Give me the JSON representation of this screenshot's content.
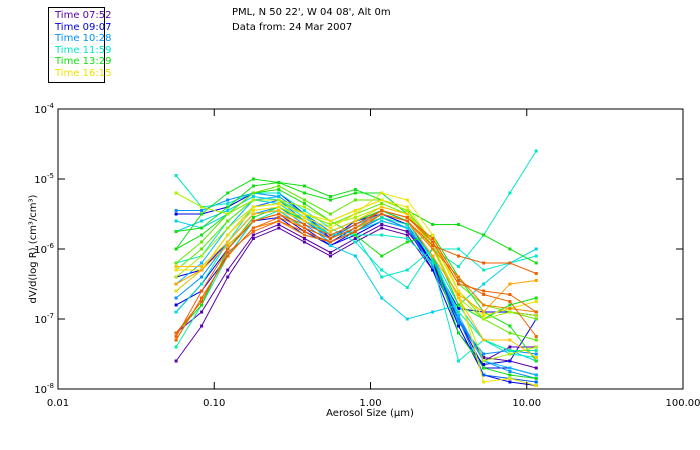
{
  "legend": {
    "items": [
      {
        "label": "Time 07:52",
        "color": "#5a00a8"
      },
      {
        "label": "Time 09:07",
        "color": "#0000e8"
      },
      {
        "label": "Time 10:28",
        "color": "#0090ff"
      },
      {
        "label": "Time 11:59",
        "color": "#00e8c8"
      },
      {
        "label": "Time 13:29",
        "color": "#10e010"
      },
      {
        "label": "Time 16:15",
        "color": "#f0e000"
      }
    ]
  },
  "header": {
    "line1": "PML, N 50 22', W 04 08', Alt 0m",
    "line2": "Data from: 24 Mar 2007"
  },
  "chart_data": {
    "type": "line",
    "title": "PML, N 50 22', W 04 08', Alt 0m",
    "subtitle": "Data from: 24 Mar 2007",
    "xlabel": "Aerosol Size (μm)",
    "ylabel": "dV/d(log R) (cm³/cm³)",
    "xscale": "log",
    "yscale": "log",
    "xlim": [
      0.01,
      100
    ],
    "ylim": [
      1e-08,
      0.0001
    ],
    "x_ticks": [
      "0.01",
      "0.10",
      "1.00",
      "10.00",
      "100.00"
    ],
    "y_ticks": [
      {
        "base": "10",
        "exp": "-4"
      },
      {
        "base": "10",
        "exp": "-5"
      },
      {
        "base": "10",
        "exp": "-6"
      },
      {
        "base": "10",
        "exp": "-7"
      },
      {
        "base": "10",
        "exp": "-8"
      }
    ],
    "legend_position": "top-left",
    "x": [
      0.057,
      0.083,
      0.122,
      0.178,
      0.259,
      0.378,
      0.554,
      0.8,
      1.18,
      1.72,
      2.5,
      3.66,
      5.3,
      7.8,
      11.5
    ],
    "series_note": "values are log10 of dV/d(log R)",
    "series": [
      {
        "color": "#5a00a8",
        "values": [
          -7.6,
          -7.1,
          -6.4,
          -5.85,
          -5.7,
          -5.9,
          -6.1,
          -5.9,
          -5.7,
          -5.8,
          -6.3,
          -7.0,
          -7.55,
          -7.6,
          -7.7
        ]
      },
      {
        "color": "#5a00a8",
        "values": [
          -7.2,
          -6.9,
          -6.3,
          -5.8,
          -5.65,
          -5.85,
          -6.05,
          -5.85,
          -5.65,
          -5.75,
          -6.2,
          -7.0,
          -7.6,
          -7.4,
          -7.4
        ]
      },
      {
        "color": "#0000e8",
        "values": [
          -6.4,
          -6.3,
          -5.9,
          -5.5,
          -5.45,
          -5.7,
          -5.95,
          -5.75,
          -5.55,
          -5.7,
          -6.2,
          -7.1,
          -7.8,
          -7.9,
          -7.95
        ]
      },
      {
        "color": "#0000e8",
        "values": [
          -5.5,
          -5.5,
          -5.4,
          -5.2,
          -5.2,
          -5.5,
          -5.85,
          -5.6,
          -5.5,
          -5.65,
          -6.2,
          -7.0,
          -7.7,
          -7.7,
          -7.8
        ]
      },
      {
        "color": "#0000e8",
        "values": [
          -6.9,
          -6.5,
          -6.0,
          -5.6,
          -5.5,
          -5.75,
          -5.95,
          -5.8,
          -5.6,
          -5.7,
          -6.3,
          -7.2,
          -7.65,
          -7.6,
          -7.0
        ]
      },
      {
        "color": "#0000e8",
        "values": [
          -6.8,
          -6.6,
          -6.1,
          -5.6,
          -5.55,
          -5.8,
          -5.9,
          -5.7,
          -5.5,
          -5.65,
          -6.2,
          -6.85,
          -6.9,
          -6.9,
          -6.95
        ]
      },
      {
        "color": "#0060f0",
        "values": [
          -6.6,
          -6.3,
          -5.8,
          -5.4,
          -5.3,
          -5.6,
          -5.85,
          -5.65,
          -5.45,
          -5.6,
          -6.15,
          -7.0,
          -7.8,
          -7.85,
          -7.9
        ]
      },
      {
        "color": "#0090ff",
        "values": [
          -5.45,
          -5.45,
          -5.3,
          -5.2,
          -5.25,
          -5.5,
          -5.75,
          -5.6,
          -5.45,
          -5.6,
          -6.1,
          -7.0,
          -7.6,
          -7.75,
          -7.85
        ]
      },
      {
        "color": "#0090ff",
        "values": [
          -6.7,
          -6.4,
          -5.9,
          -5.5,
          -5.4,
          -5.65,
          -5.9,
          -5.75,
          -5.55,
          -5.7,
          -6.25,
          -7.05,
          -7.5,
          -7.45,
          -7.5
        ]
      },
      {
        "color": "#00b8ff",
        "values": [
          -6.5,
          -6.2,
          -5.7,
          -5.3,
          -5.25,
          -5.5,
          -5.8,
          -5.65,
          -5.5,
          -5.6,
          -6.1,
          -6.95,
          -7.6,
          -7.7,
          -7.8
        ]
      },
      {
        "color": "#00d0e8",
        "values": [
          -5.6,
          -5.7,
          -5.5,
          -5.3,
          -5.35,
          -5.6,
          -5.8,
          -5.75,
          -5.6,
          -5.7,
          -6.1,
          -6.8,
          -7.3,
          -7.45,
          -7.6
        ]
      },
      {
        "color": "#00d0e8",
        "values": [
          -5.75,
          -5.6,
          -5.45,
          -5.25,
          -5.3,
          -5.5,
          -5.95,
          -6.1,
          -6.7,
          -7.0,
          -6.9,
          -6.8,
          -6.5,
          -6.2,
          -6.0
        ]
      },
      {
        "color": "#00e8c8",
        "values": [
          -4.95,
          -5.4,
          -5.35,
          -5.2,
          -5.2,
          -5.45,
          -5.7,
          -5.9,
          -6.3,
          -6.55,
          -6.0,
          -6.25,
          -5.8,
          -5.2,
          -4.6
        ]
      },
      {
        "color": "#00e8c8",
        "values": [
          -6.2,
          -6.1,
          -5.6,
          -5.3,
          -5.3,
          -5.55,
          -5.8,
          -5.8,
          -6.4,
          -6.3,
          -6.0,
          -6.0,
          -6.3,
          -6.2,
          -6.1
        ]
      },
      {
        "color": "#00e8c8",
        "values": [
          -6.9,
          -6.5,
          -5.9,
          -5.4,
          -5.35,
          -5.6,
          -5.8,
          -5.8,
          -5.8,
          -5.85,
          -6.2,
          -7.6,
          -7.3,
          -7.5,
          -7.55
        ]
      },
      {
        "color": "#00f0a0",
        "values": [
          -7.4,
          -6.8,
          -6.1,
          -5.6,
          -5.45,
          -5.7,
          -5.85,
          -5.7,
          -5.55,
          -5.65,
          -6.15,
          -6.9,
          -7.3,
          -7.45,
          -7.45
        ]
      },
      {
        "color": "#10e010",
        "values": [
          -6.0,
          -5.5,
          -5.2,
          -5.0,
          -5.05,
          -5.1,
          -5.25,
          -5.15,
          -5.3,
          -5.45,
          -5.65,
          -5.65,
          -5.8,
          -6.0,
          -6.2
        ]
      },
      {
        "color": "#10e010",
        "values": [
          -5.75,
          -5.7,
          -5.4,
          -5.1,
          -5.05,
          -5.2,
          -5.3,
          -5.2,
          -5.2,
          -5.5,
          -5.95,
          -6.8,
          -7.0,
          -6.8,
          -6.7
        ]
      },
      {
        "color": "#10e010",
        "values": [
          -6.0,
          -5.8,
          -5.5,
          -5.2,
          -5.15,
          -5.35,
          -5.6,
          -5.8,
          -6.1,
          -5.9,
          -5.8,
          -6.4,
          -6.9,
          -7.1,
          -7.6
        ]
      },
      {
        "color": "#10e010",
        "values": [
          -7.2,
          -6.8,
          -6.0,
          -5.55,
          -5.4,
          -5.6,
          -5.75,
          -5.6,
          -5.45,
          -5.6,
          -6.1,
          -7.2,
          -7.7,
          -7.8,
          -7.85
        ]
      },
      {
        "color": "#60e800",
        "values": [
          -6.3,
          -6.0,
          -5.6,
          -5.3,
          -5.3,
          -5.5,
          -5.65,
          -5.5,
          -5.35,
          -5.5,
          -5.9,
          -6.6,
          -7.0,
          -7.2,
          -7.3
        ]
      },
      {
        "color": "#60e800",
        "values": [
          -6.2,
          -5.9,
          -5.5,
          -5.2,
          -5.1,
          -5.3,
          -5.5,
          -5.3,
          -5.3,
          -5.45,
          -5.9,
          -6.5,
          -6.8,
          -6.9,
          -7.0
        ]
      },
      {
        "color": "#a8f000",
        "values": [
          -5.2,
          -5.4,
          -5.5,
          -5.3,
          -5.3,
          -5.4,
          -5.6,
          -5.45,
          -5.3,
          -5.45,
          -6.0,
          -6.7,
          -7.6,
          -7.5,
          -7.4
        ]
      },
      {
        "color": "#a8f000",
        "values": [
          -6.4,
          -6.1,
          -5.7,
          -5.4,
          -5.35,
          -5.5,
          -5.65,
          -5.55,
          -5.4,
          -5.5,
          -5.95,
          -6.7,
          -7.0,
          -6.9,
          -6.95
        ]
      },
      {
        "color": "#f0e000",
        "values": [
          -6.3,
          -6.3,
          -5.8,
          -5.45,
          -5.4,
          -5.55,
          -5.7,
          -5.5,
          -5.2,
          -5.3,
          -5.8,
          -6.6,
          -7.9,
          -7.85,
          -7.95
        ]
      },
      {
        "color": "#f0e000",
        "values": [
          -6.6,
          -6.3,
          -5.8,
          -5.4,
          -5.35,
          -5.5,
          -5.6,
          -5.45,
          -5.3,
          -5.4,
          -5.9,
          -6.6,
          -6.95,
          -6.85,
          -6.75
        ]
      },
      {
        "color": "#ffc000",
        "values": [
          -6.25,
          -6.25,
          -5.9,
          -5.5,
          -5.45,
          -5.6,
          -5.75,
          -5.6,
          -5.4,
          -5.5,
          -6.0,
          -6.7,
          -7.3,
          -7.3,
          -7.55
        ]
      },
      {
        "color": "#ffa000",
        "values": [
          -6.5,
          -6.3,
          -5.95,
          -5.6,
          -5.5,
          -5.7,
          -5.85,
          -5.7,
          -5.5,
          -5.6,
          -6.1,
          -6.65,
          -6.9,
          -6.5,
          -6.45
        ]
      },
      {
        "color": "#f08000",
        "values": [
          -7.3,
          -6.7,
          -6.1,
          -5.7,
          -5.6,
          -5.8,
          -5.9,
          -5.75,
          -5.5,
          -5.6,
          -6.0,
          -6.4,
          -6.8,
          -6.85,
          -6.9
        ]
      },
      {
        "color": "#f06000",
        "values": [
          -7.2,
          -6.75,
          -6.05,
          -5.75,
          -5.6,
          -5.75,
          -5.9,
          -5.75,
          -5.5,
          -5.6,
          -5.95,
          -6.1,
          -6.2,
          -6.2,
          -6.35
        ]
      },
      {
        "color": "#f06000",
        "values": [
          -7.3,
          -6.7,
          -6.1,
          -5.7,
          -5.55,
          -5.7,
          -5.85,
          -5.7,
          -5.45,
          -5.55,
          -5.9,
          -6.5,
          -6.6,
          -6.65,
          -6.9
        ]
      },
      {
        "color": "#f06000",
        "values": [
          -7.25,
          -6.6,
          -6.0,
          -5.6,
          -5.5,
          -5.65,
          -5.8,
          -5.65,
          -5.45,
          -5.55,
          -5.85,
          -6.45,
          -6.65,
          -6.75,
          -7.25
        ]
      }
    ]
  }
}
